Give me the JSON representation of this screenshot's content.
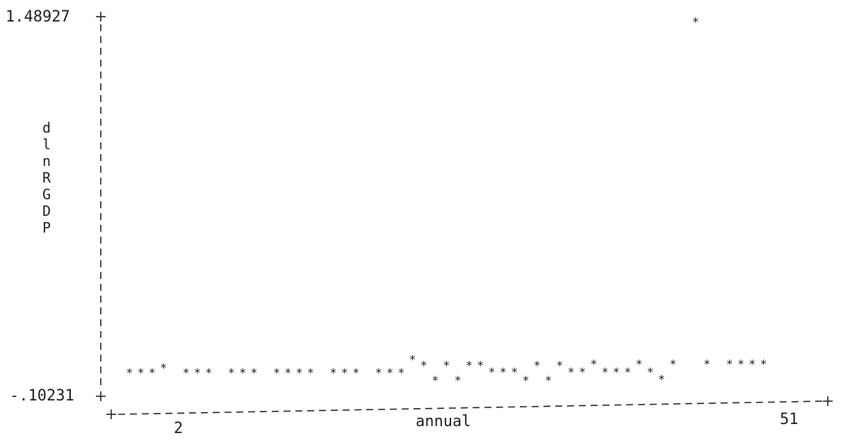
{
  "chart_data": {
    "type": "scatter",
    "ylabel": "dlnRGDP",
    "xlabel": "annual",
    "y_tick_labels": [
      "1.48927",
      "-.10231"
    ],
    "x_tick_labels": [
      "2",
      "51"
    ],
    "ylim": [
      -0.10231,
      1.48927
    ],
    "xlim": [
      2,
      64
    ],
    "marker": "*",
    "grid": false,
    "x": [
      3,
      4,
      5,
      6,
      8,
      9,
      10,
      12,
      13,
      14,
      16,
      17,
      18,
      19,
      21,
      22,
      23,
      25,
      26,
      27,
      28,
      29,
      30,
      31,
      32,
      33,
      34,
      35,
      36,
      37,
      38,
      39,
      40,
      41,
      42,
      43,
      44,
      45,
      46,
      47,
      48,
      49,
      50,
      51,
      53,
      54,
      56,
      57,
      58,
      59
    ],
    "values": [
      -0.0033,
      -0.0033,
      -0.0033,
      0.0172,
      -0.0033,
      -0.0033,
      -0.0033,
      -0.0033,
      -0.0033,
      -0.0033,
      -0.0033,
      -0.0033,
      -0.0033,
      -0.0033,
      -0.0033,
      -0.0033,
      -0.0033,
      -0.0033,
      -0.0033,
      -0.0033,
      0.0514,
      0.0268,
      -0.0347,
      0.0268,
      -0.0347,
      0.0268,
      0.0268,
      0.0,
      0.0,
      0.0,
      -0.0347,
      0.0268,
      -0.0347,
      0.0268,
      0.0,
      0.0,
      0.0323,
      0.0,
      0.0,
      0.0,
      0.0328,
      0.0,
      -0.0309,
      0.0328,
      1.4679,
      0.0323,
      0.0328,
      0.0328,
      0.0328,
      0.0328
    ]
  }
}
